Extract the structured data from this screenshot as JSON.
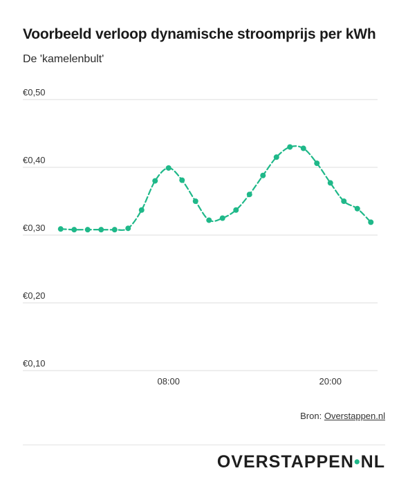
{
  "title": "Voorbeeld verloop dynamische stroomprijs per kWh",
  "subtitle": "De 'kamelenbult'",
  "source": {
    "prefix": "Bron: ",
    "link": "Overstappen.nl"
  },
  "logo": {
    "left": "OVERSTAPPEN",
    "dot": "•",
    "right": "NL"
  },
  "colors": {
    "line": "#1fb889",
    "grid": "#dddddd",
    "text": "#333333"
  },
  "chart_data": {
    "type": "line",
    "ylim": [
      0.1,
      0.5
    ],
    "y_ticks": [
      {
        "value": 0.5,
        "label": "€0,50"
      },
      {
        "value": 0.4,
        "label": "€0,40"
      },
      {
        "value": 0.3,
        "label": "€0,30"
      },
      {
        "value": 0.2,
        "label": "€0,20"
      },
      {
        "value": 0.1,
        "label": "€0,10"
      }
    ],
    "x_ticks": [
      {
        "value": 8,
        "label": "08:00"
      },
      {
        "value": 20,
        "label": "20:00"
      }
    ],
    "xlim": [
      -0.5,
      23.5
    ],
    "series": [
      {
        "x": [
          0,
          1,
          2,
          3,
          4,
          5,
          6,
          7,
          8,
          9,
          10,
          11,
          12,
          13,
          14,
          15,
          16,
          17,
          18,
          19,
          20,
          21,
          22,
          23
        ],
        "values": [
          0.309,
          0.308,
          0.308,
          0.308,
          0.308,
          0.31,
          0.337,
          0.38,
          0.399,
          0.381,
          0.35,
          0.322,
          0.325,
          0.337,
          0.36,
          0.388,
          0.415,
          0.43,
          0.428,
          0.406,
          0.377,
          0.35,
          0.339,
          0.319
        ]
      }
    ],
    "grid": true,
    "line_style": "dashed",
    "markers": true
  }
}
